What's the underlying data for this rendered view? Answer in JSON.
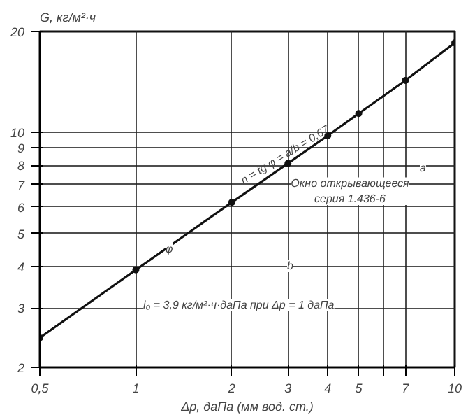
{
  "chart_data": {
    "type": "line",
    "xlabel": "Δp, даПа (мм вод. ст.)",
    "ylabel": "G, кг/м²·ч",
    "x": [
      0.5,
      1,
      2,
      3,
      4,
      5,
      7,
      10
    ],
    "series": [
      {
        "color": "#111111",
        "values": [
          2.45,
          3.9,
          6.2,
          8.1,
          9.8,
          11.4,
          14.3,
          18.5
        ]
      }
    ],
    "log": "xy",
    "xlim": [
      0.5,
      10
    ],
    "ylim": [
      2,
      20
    ],
    "xticks": [
      {
        "value": 0.5,
        "label": "0,5"
      },
      1,
      2,
      3,
      4,
      5,
      {
        "value": 6,
        "label": null
      },
      7,
      10
    ],
    "yticks": [
      2,
      3,
      4,
      5,
      6,
      7,
      8,
      9,
      10,
      20
    ],
    "grid": true,
    "marker": "circle",
    "line_style": "solid",
    "annotations": [
      {
        "text": "n = tg φ = a/b = 0,67",
        "x": 2.2,
        "y": 6.9
      },
      "Окно открывающееся серия 1.436-6",
      "a",
      "b",
      "φ",
      "i₀ = 3,9 кг/м²·ч·даПа при Δp = 1 даПа"
    ]
  }
}
